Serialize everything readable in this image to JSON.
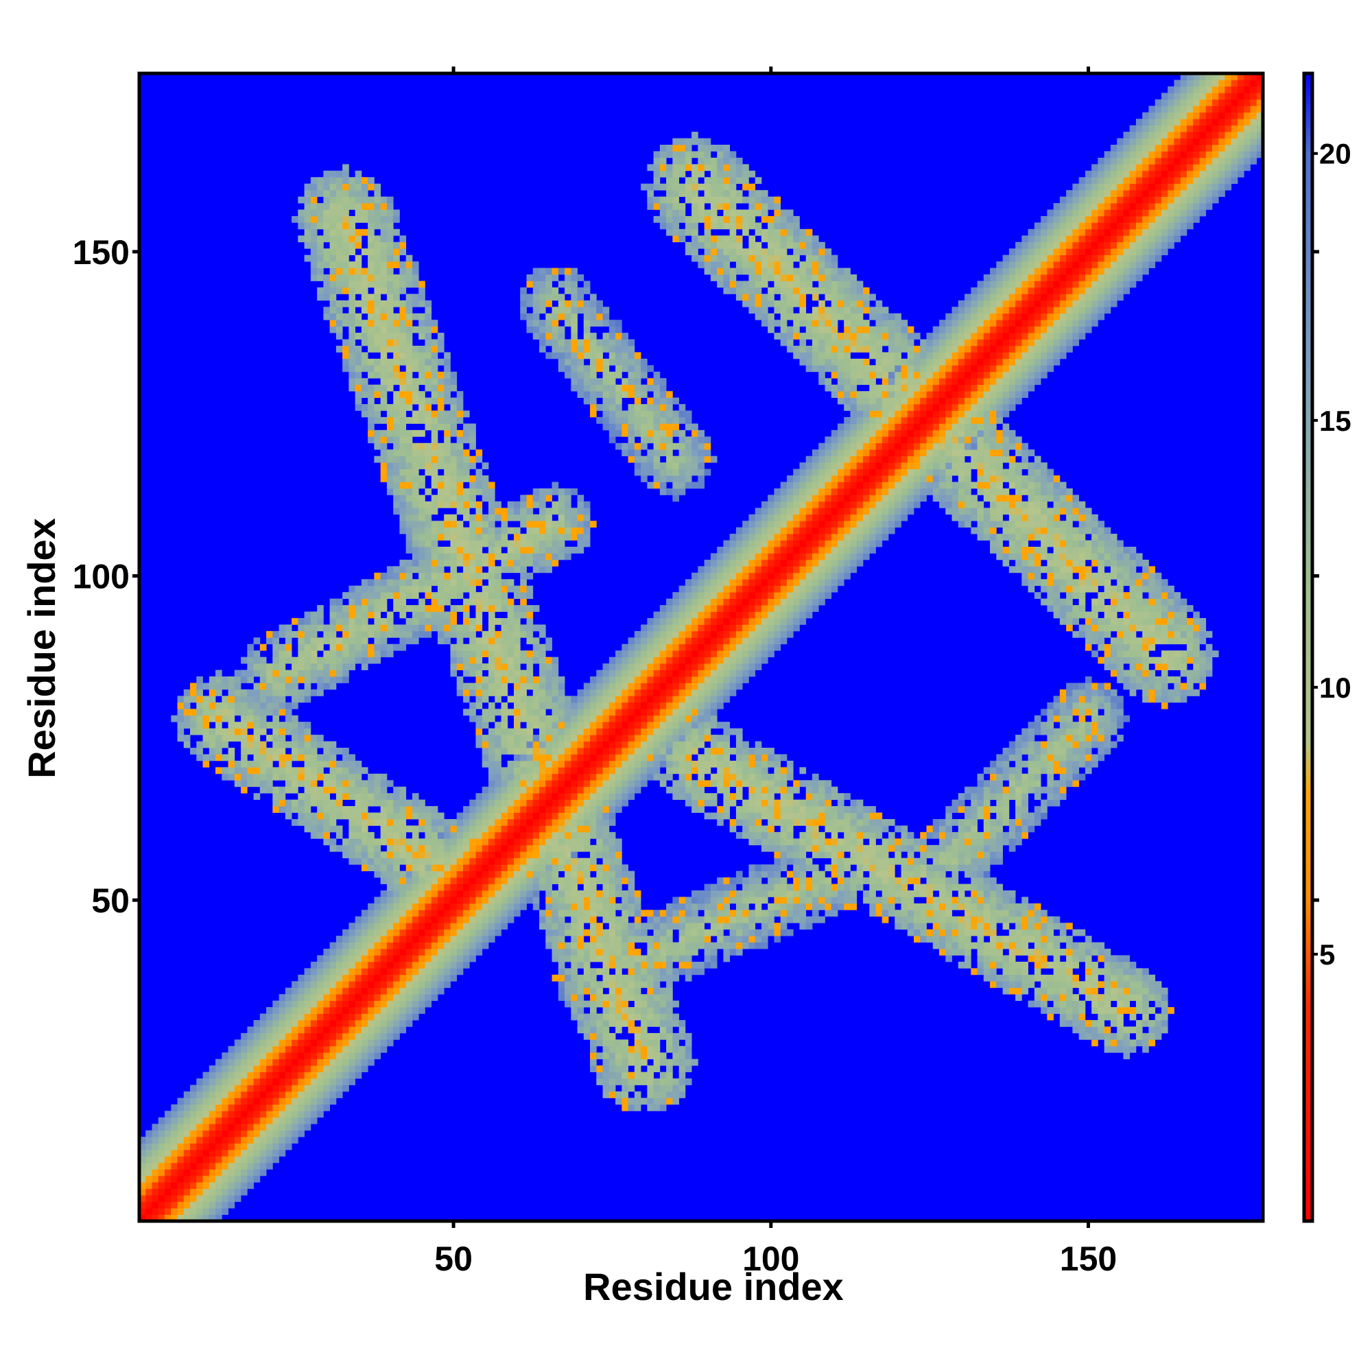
{
  "chart_data": {
    "type": "heatmap",
    "title": "",
    "xlabel": "Residue index",
    "ylabel": "Residue index",
    "xlim": [
      1,
      177
    ],
    "ylim": [
      1,
      177
    ],
    "x_ticks": [
      50,
      100,
      150
    ],
    "x_tick_labels": [
      "50",
      "100",
      "150"
    ],
    "y_ticks": [
      50,
      100,
      150
    ],
    "y_tick_labels": [
      "50",
      "100",
      "150"
    ],
    "grid": false,
    "colorbar": {
      "range": [
        0,
        21.5
      ],
      "ticks": [
        5,
        10,
        15,
        20
      ],
      "tick_labels": [
        "5",
        "10",
        "15",
        "20"
      ],
      "colors": [
        {
          "value": 0,
          "color": "#ff0000"
        },
        {
          "value": 4,
          "color": "#ff2a00"
        },
        {
          "value": 6,
          "color": "#ff8c00"
        },
        {
          "value": 8,
          "color": "#ffa500"
        },
        {
          "value": 9,
          "color": "#b5c48c"
        },
        {
          "value": 12,
          "color": "#9fbf91"
        },
        {
          "value": 16,
          "color": "#7f9fbf"
        },
        {
          "value": 20,
          "color": "#4f6fcf"
        },
        {
          "value": 21.5,
          "color": "#0000ff"
        }
      ]
    },
    "background_value": 21.5,
    "background_color": "#0000ff",
    "bands": [
      {
        "description_of_pattern": "main diagonal",
        "from": [
          1,
          1
        ],
        "to": [
          177,
          177
        ],
        "center_value": 0,
        "halfwidth": 9
      },
      {
        "description_of_pattern": "antiparallel contacts",
        "from": [
          33,
          155
        ],
        "to": [
          80,
          25
        ],
        "center_value": 9,
        "halfwidth": 8
      },
      {
        "description_of_pattern": "antiparallel contacts",
        "from": [
          13,
          78
        ],
        "to": [
          48,
          55
        ],
        "center_value": 9,
        "halfwidth": 7
      },
      {
        "description_of_pattern": "antiparallel contacts",
        "from": [
          22,
          85
        ],
        "to": [
          66,
          108
        ],
        "center_value": 10,
        "halfwidth": 6
      },
      {
        "description_of_pattern": "antiparallel contacts",
        "from": [
          88,
          160
        ],
        "to": [
          162,
          88
        ],
        "center_value": 9,
        "halfwidth": 8
      },
      {
        "description_of_pattern": "antiparallel contacts",
        "from": [
          88,
          72
        ],
        "to": [
          156,
          33
        ],
        "center_value": 9,
        "halfwidth": 7
      },
      {
        "description_of_pattern": "antiparallel contacts",
        "from": [
          66,
          142
        ],
        "to": [
          85,
          118
        ],
        "center_value": 11,
        "halfwidth": 6
      },
      {
        "description_of_pattern": "antiparallel contacts",
        "from": [
          72,
          38
        ],
        "to": [
          112,
          55
        ],
        "center_value": 11,
        "halfwidth": 6
      },
      {
        "description_of_pattern": "antiparallel contacts",
        "from": [
          128,
          56
        ],
        "to": [
          150,
          78
        ],
        "center_value": 11,
        "halfwidth": 6
      }
    ]
  }
}
